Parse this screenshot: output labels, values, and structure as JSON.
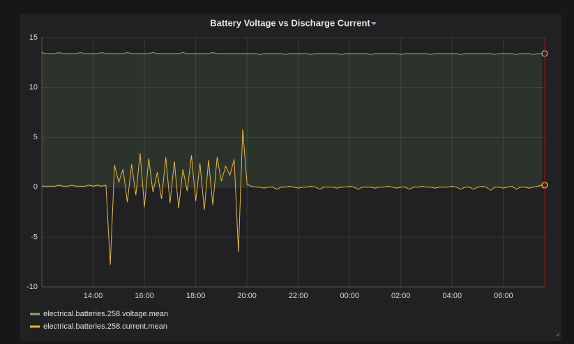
{
  "chart_data": {
    "type": "line",
    "title": "Battery Voltage vs Discharge Current",
    "x": [
      "12:00",
      "12:10",
      "12:20",
      "12:30",
      "12:40",
      "12:50",
      "13:00",
      "13:10",
      "13:20",
      "13:30",
      "13:40",
      "13:50",
      "14:00",
      "14:10",
      "14:20",
      "14:30",
      "14:40",
      "14:50",
      "15:00",
      "15:10",
      "15:20",
      "15:30",
      "15:40",
      "15:50",
      "16:00",
      "16:10",
      "16:20",
      "16:30",
      "16:40",
      "16:50",
      "17:00",
      "17:10",
      "17:20",
      "17:30",
      "17:40",
      "17:50",
      "18:00",
      "18:10",
      "18:20",
      "18:30",
      "18:40",
      "18:50",
      "19:00",
      "19:10",
      "19:20",
      "19:30",
      "19:40",
      "19:50",
      "20:00",
      "20:10",
      "20:20",
      "20:30",
      "20:40",
      "20:50",
      "21:00",
      "21:10",
      "21:20",
      "21:30",
      "21:40",
      "21:50",
      "22:00",
      "22:10",
      "22:20",
      "22:30",
      "22:40",
      "22:50",
      "23:00",
      "23:10",
      "23:20",
      "23:30",
      "23:40",
      "23:50",
      "00:00",
      "00:10",
      "00:20",
      "00:30",
      "00:40",
      "00:50",
      "01:00",
      "01:10",
      "01:20",
      "01:30",
      "01:40",
      "01:50",
      "02:00",
      "02:10",
      "02:20",
      "02:30",
      "02:40",
      "02:50",
      "03:00",
      "03:10",
      "03:20",
      "03:30",
      "03:40",
      "03:50",
      "04:00",
      "04:10",
      "04:20",
      "04:30",
      "04:40",
      "04:50",
      "05:00",
      "05:10",
      "05:20",
      "05:30",
      "05:40",
      "05:50",
      "06:00",
      "06:10",
      "06:20",
      "06:30",
      "06:40",
      "06:50",
      "07:00",
      "07:10",
      "07:20",
      "07:30"
    ],
    "series": [
      {
        "name": "electrical.batteries.258.voltage.mean",
        "color": "#7eb26d",
        "fill": true,
        "values": [
          13.5,
          13.4,
          13.4,
          13.4,
          13.5,
          13.4,
          13.4,
          13.4,
          13.4,
          13.5,
          13.4,
          13.4,
          13.4,
          13.4,
          13.5,
          13.4,
          13.4,
          13.4,
          13.4,
          13.4,
          13.5,
          13.4,
          13.4,
          13.4,
          13.4,
          13.4,
          13.5,
          13.4,
          13.4,
          13.4,
          13.4,
          13.4,
          13.4,
          13.5,
          13.4,
          13.4,
          13.4,
          13.4,
          13.4,
          13.4,
          13.5,
          13.4,
          13.4,
          13.4,
          13.4,
          13.4,
          13.4,
          13.4,
          13.4,
          13.4,
          13.4,
          13.3,
          13.4,
          13.4,
          13.4,
          13.4,
          13.4,
          13.3,
          13.4,
          13.4,
          13.4,
          13.4,
          13.4,
          13.3,
          13.4,
          13.4,
          13.4,
          13.4,
          13.4,
          13.4,
          13.3,
          13.4,
          13.4,
          13.4,
          13.4,
          13.4,
          13.4,
          13.3,
          13.4,
          13.4,
          13.4,
          13.4,
          13.4,
          13.4,
          13.3,
          13.4,
          13.4,
          13.4,
          13.4,
          13.4,
          13.4,
          13.3,
          13.4,
          13.4,
          13.4,
          13.4,
          13.4,
          13.4,
          13.3,
          13.4,
          13.4,
          13.4,
          13.4,
          13.4,
          13.4,
          13.4,
          13.3,
          13.4,
          13.4,
          13.4,
          13.4,
          13.3,
          13.4,
          13.4,
          13.4,
          13.3,
          13.4,
          13.4
        ]
      },
      {
        "name": "electrical.batteries.258.current.mean",
        "color": "#eab839",
        "fill": false,
        "values": [
          0.1,
          0.1,
          0.1,
          0.1,
          0.2,
          0.1,
          0.1,
          0.2,
          0.1,
          0.1,
          0.1,
          0.2,
          0.1,
          0.2,
          0.1,
          0.2,
          -7.8,
          2.2,
          0.5,
          1.8,
          -1.5,
          2.3,
          -0.8,
          3.4,
          -2.0,
          2.9,
          -0.5,
          1.5,
          -1.2,
          3.0,
          -1.6,
          2.6,
          -2.1,
          1.8,
          -0.4,
          3.2,
          -1.4,
          2.4,
          -2.3,
          2.7,
          -1.8,
          3.0,
          0.6,
          2.1,
          1.2,
          2.8,
          -6.5,
          5.8,
          0.3,
          0.1,
          0,
          0,
          -0.1,
          0,
          0,
          -0.2,
          0,
          0,
          0.1,
          0,
          -0.1,
          0,
          0,
          0.1,
          0,
          -0.2,
          0,
          0,
          0,
          -0.1,
          0,
          0,
          0.1,
          0,
          -0.2,
          0,
          0,
          0,
          -0.1,
          0,
          0,
          0.1,
          0,
          -0.1,
          0,
          0,
          -0.2,
          0,
          0,
          0.1,
          0,
          0,
          -0.1,
          0,
          0,
          0,
          0.1,
          0,
          -0.2,
          0,
          0,
          -0.2,
          0,
          0.1,
          0,
          -0.3,
          0,
          0,
          -0.1,
          0,
          0.1,
          -0.2,
          0,
          0,
          -0.1,
          0,
          0.1,
          0.2
        ]
      }
    ],
    "ylim": [
      -10,
      15
    ],
    "yticks": [
      -10,
      -5,
      0,
      5,
      10,
      15
    ],
    "xticks": [
      "14:00",
      "16:00",
      "18:00",
      "20:00",
      "22:00",
      "00:00",
      "02:00",
      "04:00",
      "06:00"
    ],
    "grid": true,
    "legend": "bottom-left"
  }
}
